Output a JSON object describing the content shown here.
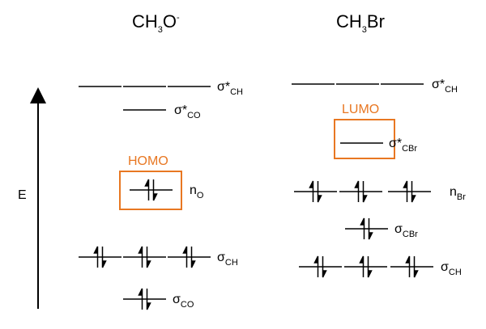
{
  "colors": {
    "line": "#000000",
    "highlight": "#e87722"
  },
  "axis": {
    "label": "E"
  },
  "left": {
    "title_main": "CH",
    "title_sub": "3",
    "title_rest": "O",
    "title_sup": "-",
    "homo_label": "HOMO",
    "levels": [
      {
        "main": "σ*",
        "sub": "CH",
        "occupied": false,
        "count": 3
      },
      {
        "main": "σ*",
        "sub": "CO",
        "occupied": false,
        "count": 1
      },
      {
        "main": "n",
        "sub": "O",
        "occupied": true,
        "count": 1,
        "highlight": "HOMO"
      },
      {
        "main": "σ",
        "sub": "CH",
        "occupied": true,
        "count": 3
      },
      {
        "main": "σ",
        "sub": "CO",
        "occupied": true,
        "count": 1
      }
    ]
  },
  "right": {
    "title_main": "CH",
    "title_sub": "3",
    "title_rest": "Br",
    "lumo_label": "LUMO",
    "levels": [
      {
        "main": "σ*",
        "sub": "CH",
        "occupied": false,
        "count": 3
      },
      {
        "main": "σ*",
        "sub": "CBr",
        "occupied": false,
        "count": 1,
        "highlight": "LUMO"
      },
      {
        "main": "n",
        "sub": "Br",
        "occupied": true,
        "count": 3
      },
      {
        "main": "σ",
        "sub": "CBr",
        "occupied": true,
        "count": 1
      },
      {
        "main": "σ",
        "sub": "CH",
        "occupied": true,
        "count": 3
      }
    ]
  }
}
